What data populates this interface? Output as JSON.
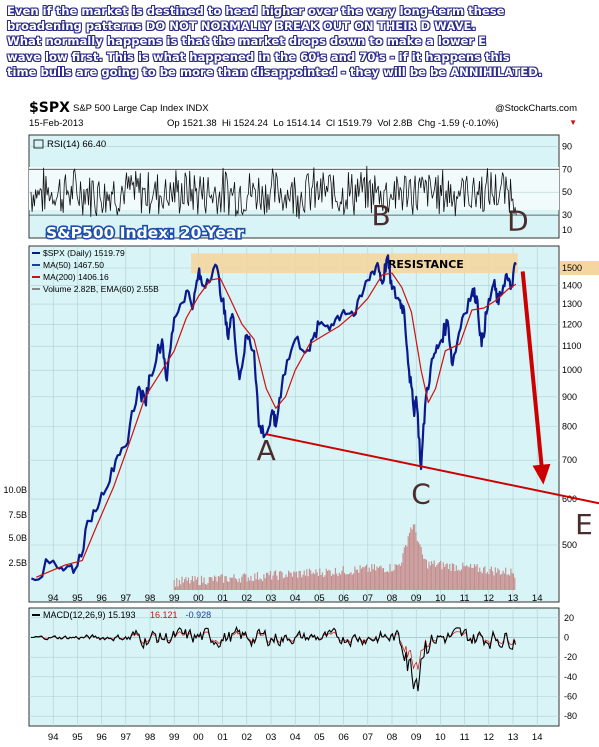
{
  "commentary": [
    "Even if the market is destined to head higher over the very long-term these",
    "broadening patterns DO NOT NORMALLY BREAK OUT ON THEIR D WAVE.",
    "What normally happens is that the market drops down to make a lower E",
    "wave low first. This is what happened in the 60's and 70's - if it happens this",
    "time bulls are going to be more than disappointed - they will be be ANNIHILATED."
  ],
  "header": {
    "symbol": "$SPX",
    "name": "S&P 500 Large Cap Index INDX",
    "source": "@StockCharts.com",
    "date": "15-Feb-2013",
    "ohlc": "Op 1521.38  Hi 1524.24  Lo 1514.14  Cl 1519.79  Vol 2.8B  Chg -1.59 (-0.10%)",
    "ohlc_arrow": "▼"
  },
  "colors": {
    "panel_bg": "#d8f4f6",
    "price": "#0a1a8c",
    "ma_red": "#cc1111",
    "annotation_red": "#cc0000",
    "resistance": "#f5d6a0",
    "title_blue": "#1e4fa8",
    "letters": "#4a2c2c"
  },
  "chart_data": [
    {
      "type": "line",
      "panel": "rsi",
      "legend": "RSI(14) 66.40",
      "y_ticks": [
        30,
        50,
        70,
        90
      ],
      "ylim": [
        10,
        100
      ],
      "guide_levels": [
        70,
        30
      ],
      "range_band": [
        70,
        30
      ]
    },
    {
      "type": "line",
      "panel": "price",
      "title": "S&P500 Index: 20-Year",
      "legend": [
        {
          "label": "$SPX (Daily) 1519.79",
          "color": "#0a1a8c"
        },
        {
          "label": "MA(50) 1467.50",
          "color": "#1a3ea8"
        },
        {
          "label": "MA(200) 1406.16",
          "color": "#cc1111"
        },
        {
          "label": "Volume 2.82B, EMA(60) 2.55B",
          "color": "#888888"
        }
      ],
      "x_ticks": [
        "94",
        "95",
        "96",
        "97",
        "98",
        "99",
        "00",
        "01",
        "02",
        "03",
        "04",
        "05",
        "06",
        "07",
        "08",
        "09",
        "10",
        "11",
        "12",
        "13",
        "14"
      ],
      "y_ticks": [
        500,
        600,
        700,
        800,
        900,
        1000,
        1100,
        1200,
        1300,
        1400,
        1500
      ],
      "y_ticks_highlight": 1500,
      "scale": "log",
      "volume_ticks": [
        "10.0B",
        "7.5B",
        "5.0B",
        "2.5B"
      ],
      "series": [
        {
          "name": "$SPX (Daily)",
          "points": [
            [
              1993.1,
              438
            ],
            [
              1994.0,
              470
            ],
            [
              1994.5,
              455
            ],
            [
              1995.0,
              460
            ],
            [
              1995.5,
              550
            ],
            [
              1996.0,
              615
            ],
            [
              1996.5,
              670
            ],
            [
              1997.0,
              740
            ],
            [
              1997.5,
              930
            ],
            [
              1997.8,
              880
            ],
            [
              1998.0,
              980
            ],
            [
              1998.5,
              1130
            ],
            [
              1998.7,
              960
            ],
            [
              1999.0,
              1230
            ],
            [
              1999.5,
              1370
            ],
            [
              1999.8,
              1300
            ],
            [
              2000.0,
              1469
            ],
            [
              2000.2,
              1400
            ],
            [
              2000.7,
              1520
            ],
            [
              2001.0,
              1320
            ],
            [
              2001.2,
              1150
            ],
            [
              2001.4,
              1250
            ],
            [
              2001.7,
              965
            ],
            [
              2002.0,
              1150
            ],
            [
              2002.3,
              1080
            ],
            [
              2002.5,
              800
            ],
            [
              2002.8,
              776
            ],
            [
              2003.1,
              840
            ],
            [
              2003.2,
              800
            ],
            [
              2003.5,
              980
            ],
            [
              2004.0,
              1130
            ],
            [
              2004.6,
              1080
            ],
            [
              2005.0,
              1200
            ],
            [
              2005.5,
              1200
            ],
            [
              2006.0,
              1270
            ],
            [
              2006.5,
              1250
            ],
            [
              2007.0,
              1430
            ],
            [
              2007.4,
              1530
            ],
            [
              2007.6,
              1410
            ],
            [
              2007.8,
              1565
            ],
            [
              2008.0,
              1380
            ],
            [
              2008.3,
              1320
            ],
            [
              2008.5,
              1270
            ],
            [
              2008.7,
              1000
            ],
            [
              2008.9,
              850
            ],
            [
              2009.0,
              900
            ],
            [
              2009.2,
              676
            ],
            [
              2009.4,
              900
            ],
            [
              2009.7,
              1050
            ],
            [
              2010.0,
              1120
            ],
            [
              2010.3,
              1215
            ],
            [
              2010.5,
              1020
            ],
            [
              2010.9,
              1230
            ],
            [
              2011.3,
              1360
            ],
            [
              2011.5,
              1340
            ],
            [
              2011.7,
              1100
            ],
            [
              2011.9,
              1250
            ],
            [
              2012.2,
              1410
            ],
            [
              2012.4,
              1300
            ],
            [
              2012.7,
              1460
            ],
            [
              2012.9,
              1380
            ],
            [
              2013.12,
              1519.79
            ]
          ]
        },
        {
          "name": "MA(200)",
          "points": [
            [
              1993.3,
              440
            ],
            [
              1994.5,
              462
            ],
            [
              1995.2,
              470
            ],
            [
              1995.8,
              540
            ],
            [
              1996.5,
              630
            ],
            [
              1997.2,
              760
            ],
            [
              1997.8,
              900
            ],
            [
              1998.5,
              1000
            ],
            [
              1999.0,
              1080
            ],
            [
              1999.5,
              1230
            ],
            [
              2000.0,
              1340
            ],
            [
              2000.5,
              1430
            ],
            [
              2000.9,
              1440
            ],
            [
              2001.3,
              1330
            ],
            [
              2001.8,
              1200
            ],
            [
              2002.3,
              1130
            ],
            [
              2002.8,
              930
            ],
            [
              2003.2,
              860
            ],
            [
              2003.6,
              900
            ],
            [
              2004.0,
              1000
            ],
            [
              2004.6,
              1110
            ],
            [
              2005.2,
              1150
            ],
            [
              2005.8,
              1190
            ],
            [
              2006.4,
              1250
            ],
            [
              2007.0,
              1330
            ],
            [
              2007.6,
              1460
            ],
            [
              2008.0,
              1470
            ],
            [
              2008.4,
              1390
            ],
            [
              2008.8,
              1260
            ],
            [
              2009.2,
              1000
            ],
            [
              2009.5,
              880
            ],
            [
              2009.8,
              930
            ],
            [
              2010.2,
              1080
            ],
            [
              2010.8,
              1110
            ],
            [
              2011.3,
              1270
            ],
            [
              2011.8,
              1280
            ],
            [
              2012.3,
              1320
            ],
            [
              2012.8,
              1380
            ],
            [
              2013.12,
              1406.16
            ]
          ]
        }
      ],
      "resistance": {
        "label": "RESISTANCE",
        "y_low": 1470,
        "y_high": 1590,
        "x_start": 1999.7,
        "x_end": 2013.2
      },
      "wave_labels": [
        {
          "label": "A",
          "x": 2002.8,
          "y": 700
        },
        {
          "label": "B",
          "x": 2007.55,
          "y": 1780
        },
        {
          "label": "C",
          "x": 2009.2,
          "y": 590
        },
        {
          "label": "D",
          "x": 2013.2,
          "y": 1740
        },
        {
          "label": "E",
          "x": 2014.5,
          "y": 540
        }
      ],
      "trendline": {
        "from": [
          2002.8,
          776
        ],
        "to": [
          2015.5,
          590
        ]
      },
      "forecast_arrow": {
        "from": [
          2013.4,
          1480
        ],
        "to": [
          2014.2,
          630
        ]
      }
    },
    {
      "type": "line",
      "panel": "macd",
      "legend": [
        {
          "label": "MACD(12,26,9) 15.193",
          "color": "#000000"
        },
        {
          "label": "16.121",
          "color": "#cc1111"
        },
        {
          "label": "-0.928",
          "color": "#1a3ea8"
        }
      ],
      "y_ticks": [
        20,
        0,
        -20,
        -40,
        -60,
        -80
      ],
      "ylim": [
        -90,
        30
      ],
      "x_ticks": [
        "94",
        "95",
        "96",
        "97",
        "98",
        "99",
        "00",
        "01",
        "02",
        "03",
        "04",
        "05",
        "06",
        "07",
        "08",
        "09",
        "10",
        "11",
        "12",
        "13",
        "14"
      ]
    }
  ]
}
